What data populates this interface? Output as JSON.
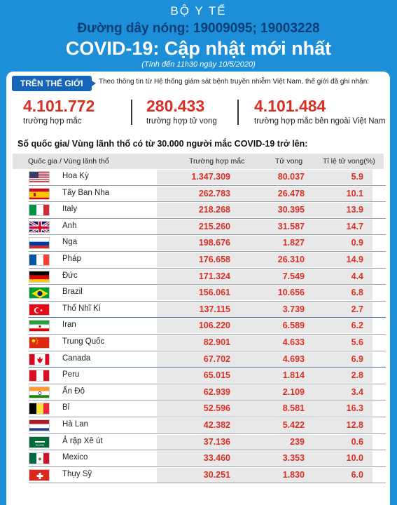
{
  "header": {
    "ministry": "BỘ Y TẾ",
    "hotline": "Đường dây nóng: 19009095; 19003228",
    "title": "COVID-19: Cập nhật mới nhất",
    "subtitle": "(Tính đến 11h30 ngày 10/5/2020)"
  },
  "world": {
    "tag": "TRÊN THẾ GIỚI",
    "intro": "Theo thông tin từ Hệ thống giám sát bệnh truyền nhiễm Việt Nam, thế giới đã ghi nhận:",
    "cases": {
      "value": "4.101.772",
      "label": "trường hợp mắc"
    },
    "deaths": {
      "value": "280.433",
      "label": "trường hợp tử vong"
    },
    "outside": {
      "value": "4.101.484",
      "label": "trường hợp  mắc bên ngoài Việt Nam"
    }
  },
  "table": {
    "title": "Số quốc gia/ Vùng lãnh thổ có từ 30.000 người  mắc COVID-19 trở lên:",
    "headers": {
      "country": "Quốc gia / Vùng lãnh thổ",
      "cases": "Trường hợp mắc",
      "deaths": "Tử vong",
      "rate": "Tỉ lệ tử vong(%)"
    },
    "rows": [
      {
        "flag": "us-flag",
        "name": "Hoa Kỳ",
        "cases": "1.347.309",
        "deaths": "80.037",
        "rate": "5.9"
      },
      {
        "flag": "spain-flag",
        "name": "Tây Ban Nha",
        "cases": "262.783",
        "deaths": "26.478",
        "rate": "10.1"
      },
      {
        "flag": "italy-flag",
        "name": "Italy",
        "cases": "218.268",
        "deaths": "30.395",
        "rate": "13.9"
      },
      {
        "flag": "uk-flag",
        "name": "Anh",
        "cases": "215.260",
        "deaths": "31.587",
        "rate": "14.7"
      },
      {
        "flag": "russia-flag",
        "name": "Nga",
        "cases": "198.676",
        "deaths": "1.827",
        "rate": "0.9"
      },
      {
        "flag": "france-flag",
        "name": "Pháp",
        "cases": "176.658",
        "deaths": "26.310",
        "rate": "14.9"
      },
      {
        "flag": "germany-flag",
        "name": "Đức",
        "cases": "171.324",
        "deaths": "7.549",
        "rate": "4.4"
      },
      {
        "flag": "brazil-flag",
        "name": "Brazil",
        "cases": "156.061",
        "deaths": "10.656",
        "rate": "6.8"
      },
      {
        "flag": "turkey-flag",
        "name": "Thổ Nhĩ Kì",
        "cases": "137.115",
        "deaths": "3.739",
        "rate": "2.7"
      },
      {
        "flag": "iran-flag",
        "name": "Iran",
        "cases": "106.220",
        "deaths": "6.589",
        "rate": "6.2"
      },
      {
        "flag": "china-flag",
        "name": " Trung Quốc",
        "cases": "82.901",
        "deaths": "4.633",
        "rate": "5.6"
      },
      {
        "flag": "canada-flag",
        "name": "Canada",
        "cases": "67.702",
        "deaths": "4.693",
        "rate": "6.9"
      },
      {
        "flag": "peru-flag",
        "name": "Peru",
        "cases": "65.015",
        "deaths": "1.814",
        "rate": "2.8"
      },
      {
        "flag": "india-flag",
        "name": "Ấn Độ",
        "cases": "62.939",
        "deaths": "2.109",
        "rate": "3.4"
      },
      {
        "flag": "belgium-flag",
        "name": "Bỉ",
        "cases": "52.596",
        "deaths": "8.581",
        "rate": "16.3"
      },
      {
        "flag": "netherlands-flag",
        "name": "Hà Lan",
        "cases": "42.382",
        "deaths": "5.422",
        "rate": "12.8"
      },
      {
        "flag": "saudi-flag",
        "name": "Ả rập Xê út",
        "cases": "37.136",
        "deaths": "239",
        "rate": "0.6"
      },
      {
        "flag": "mexico-flag",
        "name": "Mexico",
        "cases": "33.460",
        "deaths": "3.353",
        "rate": "10.0"
      },
      {
        "flag": "switzerland-flag",
        "name": "Thụy Sỹ",
        "cases": "30.251",
        "deaths": "1.830",
        "rate": "6.0"
      }
    ]
  }
}
